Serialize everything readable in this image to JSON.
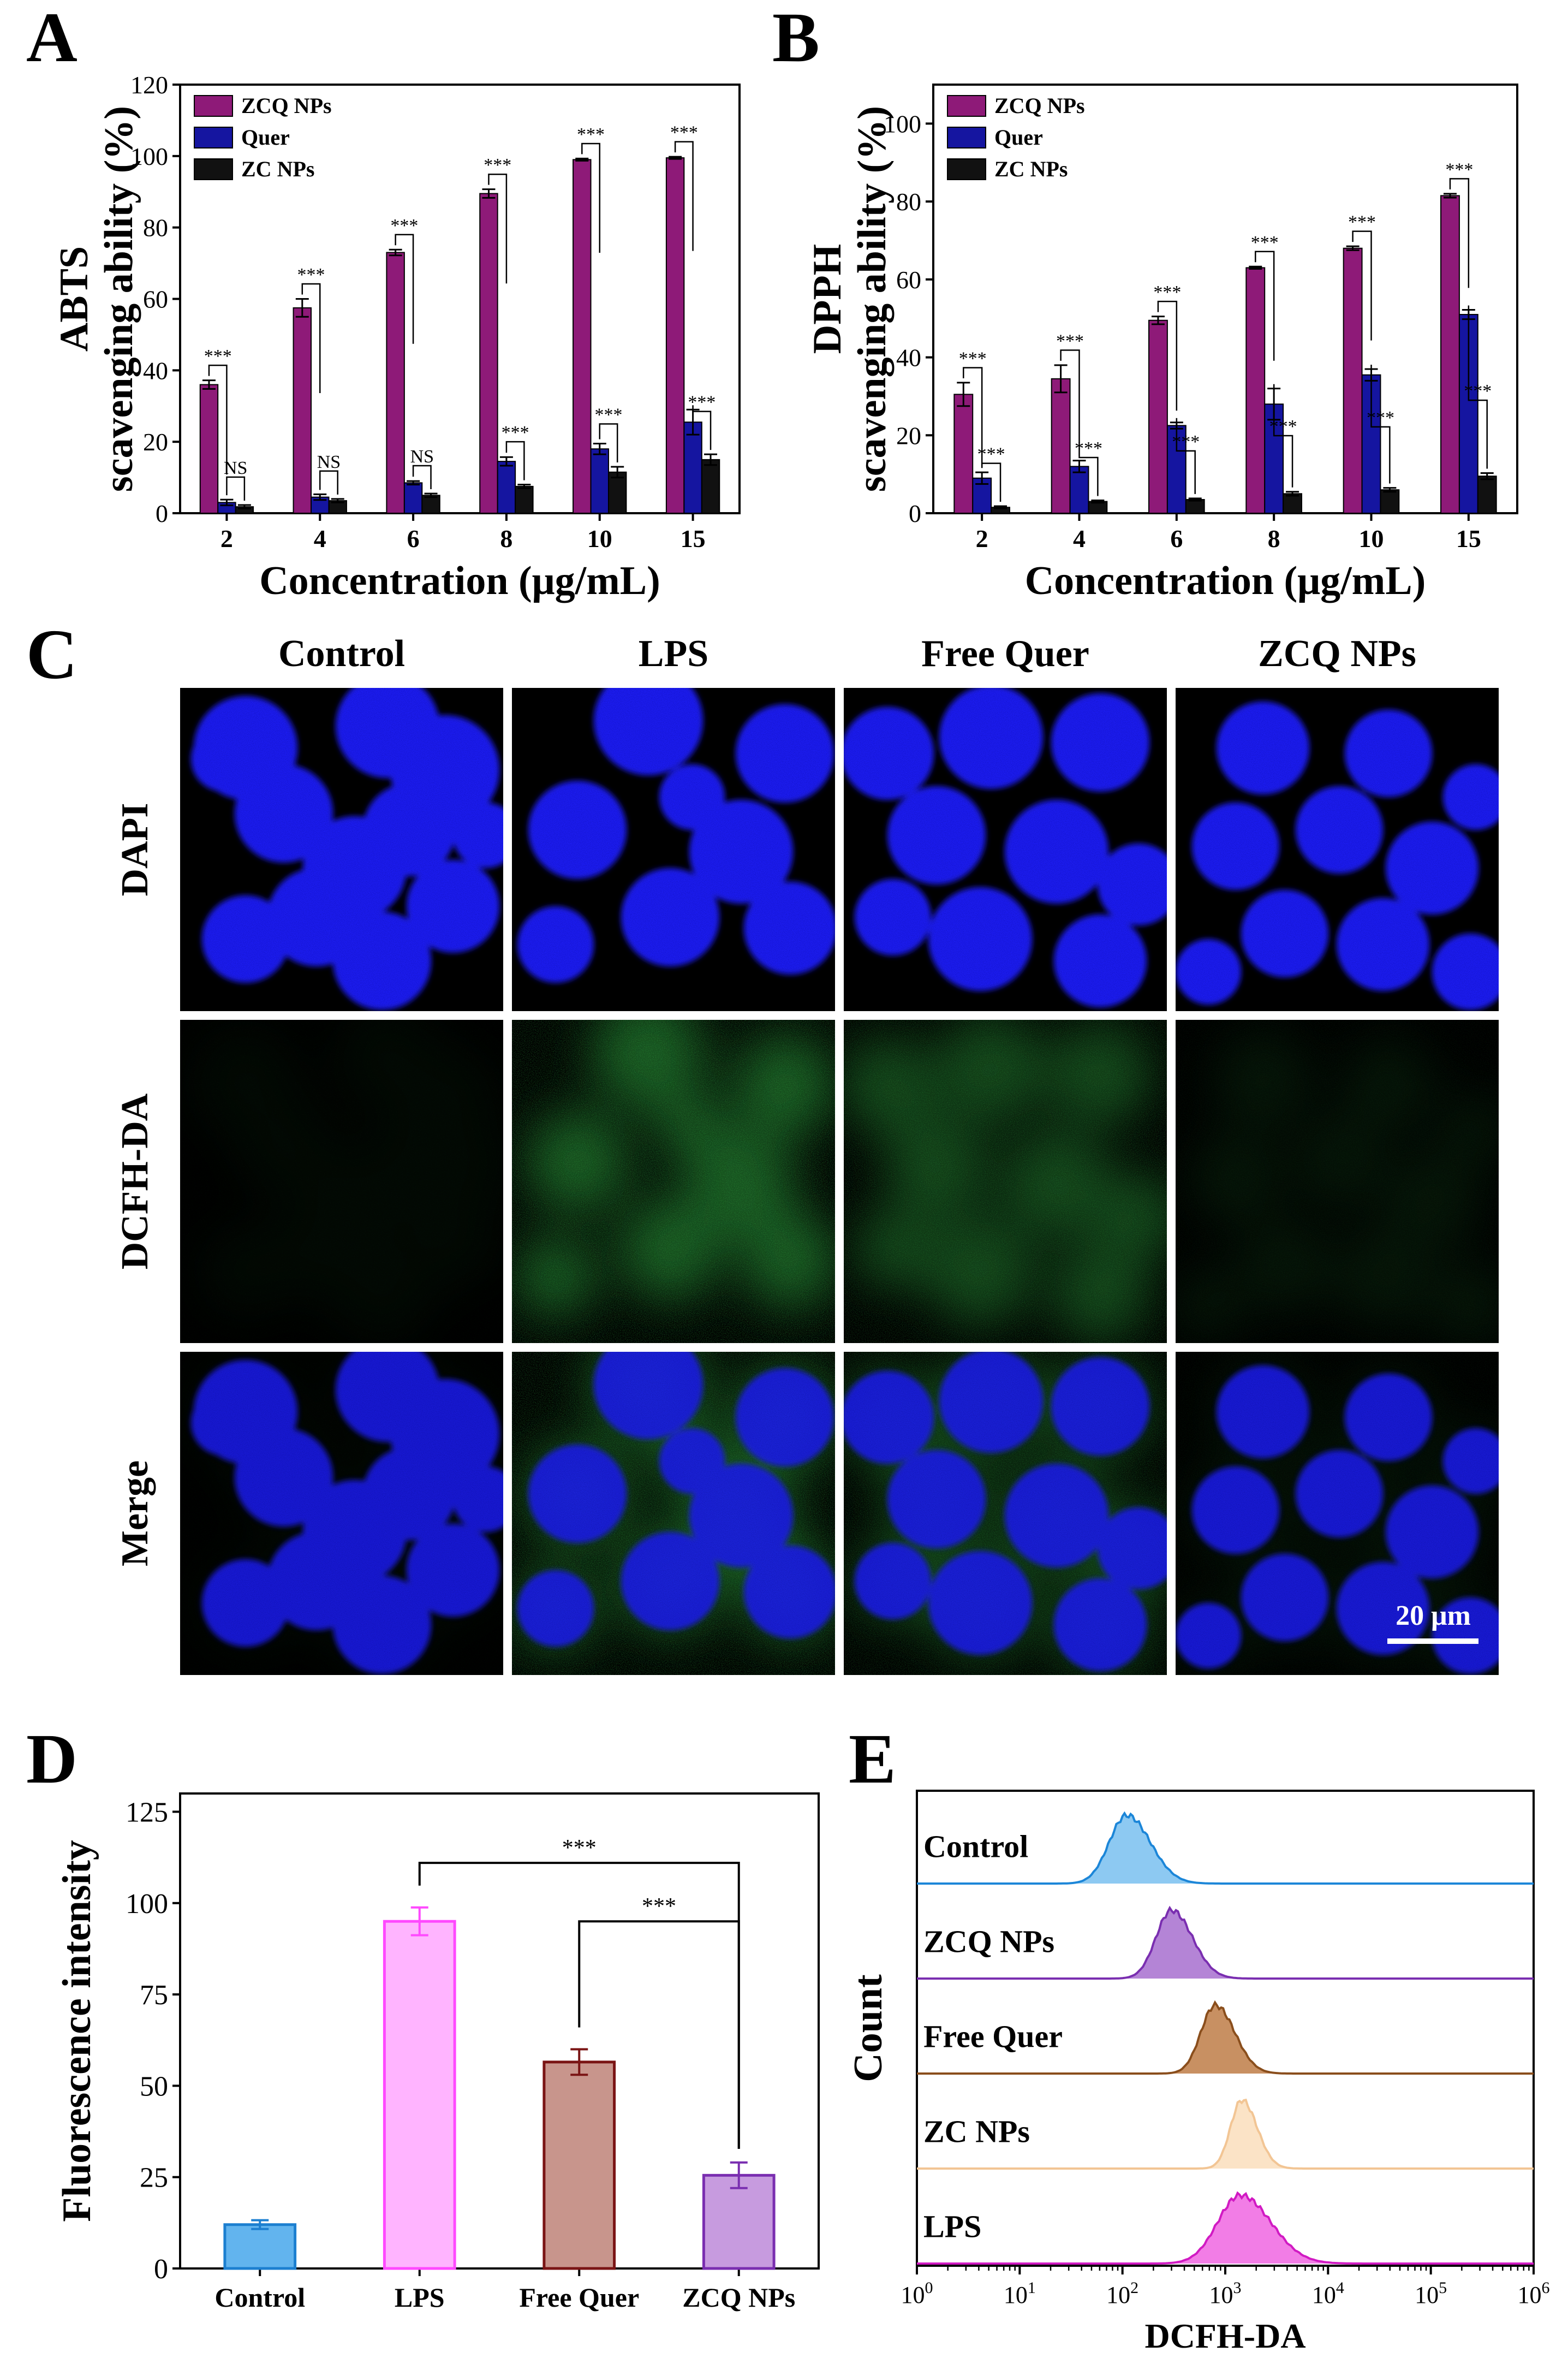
{
  "panels": {
    "A": "A",
    "B": "B",
    "C": "C",
    "D": "D",
    "E": "E"
  },
  "colors": {
    "zcq": "#8E1A78",
    "quer": "#1515A0",
    "zc": "#111111",
    "control_fill": "#62B4EE",
    "control_edge": "#1C7FD0",
    "lps_fill": "#FFB4FF",
    "lps_edge": "#FF49FF",
    "freequer_fill": "#C8958C",
    "freequer_edge": "#7A1414",
    "zcqnps_fill": "#C79BDF",
    "zcqnps_edge": "#7A2EB0",
    "nucleus": "#1E1EF0",
    "ros": "#2A9A3A"
  },
  "chart_data": [
    {
      "id": "A",
      "type": "bar",
      "ylabel_line1": "ABTS",
      "ylabel_line2": "scavenging ability (%)",
      "xlabel": "Concentration (μg/mL)",
      "categories": [
        "2",
        "4",
        "6",
        "8",
        "10",
        "15"
      ],
      "ylim": [
        0,
        120
      ],
      "yticks": [
        0,
        20,
        40,
        60,
        80,
        100,
        120
      ],
      "legend_position": "top-left",
      "series": [
        {
          "name": "ZCQ NPs",
          "values": [
            36,
            57.5,
            73,
            89.5,
            99,
            99.5
          ],
          "errors": [
            1.2,
            2.5,
            0.8,
            1.2,
            0.3,
            0.3
          ]
        },
        {
          "name": "Quer",
          "values": [
            3,
            4.5,
            8.5,
            14.5,
            18,
            25.5
          ],
          "errors": [
            0.8,
            0.8,
            0.5,
            1.2,
            1.5,
            3.5
          ]
        },
        {
          "name": "ZC NPs",
          "values": [
            1.8,
            3.5,
            5,
            7.5,
            11.5,
            15
          ],
          "errors": [
            0.5,
            0.5,
            0.5,
            0.5,
            1.5,
            1.5
          ]
        }
      ],
      "annotations": [
        {
          "group": 0,
          "pair": "zcq-quer",
          "label": "***"
        },
        {
          "group": 0,
          "pair": "quer-zc",
          "label": "NS"
        },
        {
          "group": 1,
          "pair": "zcq-quer",
          "label": "***"
        },
        {
          "group": 1,
          "pair": "quer-zc",
          "label": "NS"
        },
        {
          "group": 2,
          "pair": "zcq-quer",
          "label": "***"
        },
        {
          "group": 2,
          "pair": "quer-zc",
          "label": "NS"
        },
        {
          "group": 3,
          "pair": "zcq-quer",
          "label": "***"
        },
        {
          "group": 3,
          "pair": "quer-zc",
          "label": "***"
        },
        {
          "group": 4,
          "pair": "zcq-quer",
          "label": "***"
        },
        {
          "group": 4,
          "pair": "quer-zc",
          "label": "***"
        },
        {
          "group": 5,
          "pair": "zcq-quer",
          "label": "***"
        },
        {
          "group": 5,
          "pair": "quer-zc",
          "label": "***"
        }
      ]
    },
    {
      "id": "B",
      "type": "bar",
      "ylabel_line1": "DPPH",
      "ylabel_line2": "scavenging ability (%)",
      "xlabel": "Concentration (μg/mL)",
      "categories": [
        "2",
        "4",
        "6",
        "8",
        "10",
        "15"
      ],
      "ylim": [
        0,
        110
      ],
      "yticks": [
        0,
        20,
        40,
        60,
        80,
        100
      ],
      "legend_position": "top-left",
      "series": [
        {
          "name": "ZCQ NPs",
          "values": [
            30.5,
            34.5,
            49.5,
            63,
            68,
            81.5
          ],
          "errors": [
            3,
            3.5,
            1,
            0.3,
            0.5,
            0.5
          ]
        },
        {
          "name": "Quer",
          "values": [
            9,
            12,
            22.5,
            28,
            35.5,
            51
          ],
          "errors": [
            1.5,
            1.5,
            0.8,
            4,
            1.5,
            1.2
          ]
        },
        {
          "name": "ZC NPs",
          "values": [
            1.5,
            3,
            3.5,
            5,
            6,
            9.5
          ],
          "errors": [
            0.3,
            0.3,
            0.3,
            0.5,
            0.5,
            0.8
          ]
        }
      ],
      "annotations": [
        {
          "group": 0,
          "pair": "zcq-quer",
          "label": "***"
        },
        {
          "group": 0,
          "pair": "quer-zc",
          "label": "***"
        },
        {
          "group": 1,
          "pair": "zcq-quer",
          "label": "***"
        },
        {
          "group": 1,
          "pair": "quer-zc",
          "label": "***"
        },
        {
          "group": 2,
          "pair": "zcq-quer",
          "label": "***"
        },
        {
          "group": 2,
          "pair": "quer-zc",
          "label": "***"
        },
        {
          "group": 3,
          "pair": "zcq-quer",
          "label": "***"
        },
        {
          "group": 3,
          "pair": "quer-zc",
          "label": "***"
        },
        {
          "group": 4,
          "pair": "zcq-quer",
          "label": "***"
        },
        {
          "group": 4,
          "pair": "quer-zc",
          "label": "***"
        },
        {
          "group": 5,
          "pair": "zcq-quer",
          "label": "***"
        },
        {
          "group": 5,
          "pair": "quer-zc",
          "label": "***"
        }
      ]
    },
    {
      "id": "D",
      "type": "bar",
      "ylabel": "Fluorescence intensity",
      "categories": [
        "Control",
        "LPS",
        "Free Quer",
        "ZCQ NPs"
      ],
      "values": [
        12,
        95,
        56.5,
        25.5
      ],
      "errors": [
        1.2,
        3.8,
        3.5,
        3.5
      ],
      "ylim": [
        0,
        130
      ],
      "yticks": [
        0,
        25,
        50,
        75,
        100,
        125
      ],
      "annotations": [
        {
          "from": 1,
          "to": 3,
          "label": "***"
        },
        {
          "from": 2,
          "to": 3,
          "label": "***"
        }
      ]
    },
    {
      "id": "E",
      "type": "area",
      "ylabel": "Count",
      "xlabel": "DCFH-DA",
      "xscale": "log",
      "xlim": [
        1,
        1000000
      ],
      "xtick_base": "10",
      "xtick_exponents": [
        "0",
        "1",
        "2",
        "3",
        "4",
        "5",
        "6"
      ],
      "series": [
        {
          "name": "Control",
          "peak": 110,
          "spread": 0.17,
          "fill": "#8DC9F2",
          "edge": "#1C86D8"
        },
        {
          "name": "ZCQ NPs",
          "peak": 300,
          "spread": 0.15,
          "fill": "#B484D6",
          "edge": "#7A2EB0"
        },
        {
          "name": "Free Quer",
          "peak": 800,
          "spread": 0.14,
          "fill": "#C89062",
          "edge": "#8A4E1C"
        },
        {
          "name": "ZC NPs",
          "peak": 1450,
          "spread": 0.11,
          "fill": "#FBE3C6",
          "edge": "#F2C594"
        },
        {
          "name": "LPS",
          "peak": 1400,
          "spread": 0.22,
          "fill": "#F27DE6",
          "edge": "#D11AC3"
        }
      ]
    }
  ],
  "microscopy": {
    "columns": [
      "Control",
      "LPS",
      "Free Quer",
      "ZCQ NPs"
    ],
    "rows": [
      "DAPI",
      "DCFH-DA",
      "Merge"
    ],
    "green_intensity": [
      0.05,
      0.55,
      0.42,
      0.12
    ],
    "scale_bar": "20 μm"
  }
}
